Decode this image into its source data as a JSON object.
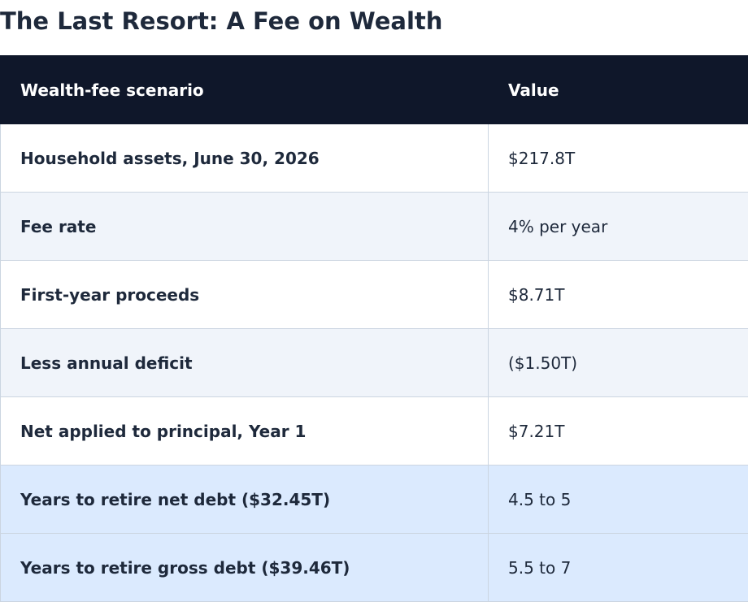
{
  "title": "The Last Resort: A Fee on Wealth",
  "table": {
    "headers": {
      "label": "Wealth-fee scenario",
      "value": "Value"
    },
    "rows": [
      {
        "label": "Household assets, June 30, 2026",
        "value": "$217.8T"
      },
      {
        "label": "Fee rate",
        "value": "4% per year"
      },
      {
        "label": "First-year proceeds",
        "value": "$8.71T"
      },
      {
        "label": "Less annual deficit",
        "value": "($1.50T)"
      },
      {
        "label": "Net applied to principal, Year 1",
        "value": "$7.21T"
      },
      {
        "label": "Years to retire net debt ($32.45T)",
        "value": "4.5 to 5"
      },
      {
        "label": "Years to retire gross debt ($39.46T)",
        "value": "5.5 to 7"
      }
    ]
  },
  "colors": {
    "header_bg": "#0f172a",
    "row_alt": "#f0f4fa",
    "row_highlight": "#dbeafe",
    "text": "#1e293b"
  }
}
